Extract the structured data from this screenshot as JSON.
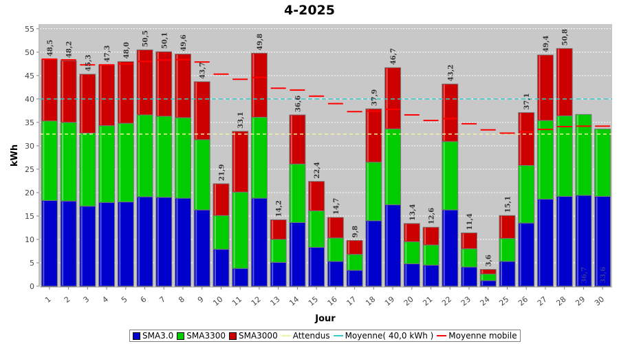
{
  "chart_data": {
    "type": "bar",
    "title": "4-2025",
    "xlabel": "Jour",
    "ylabel": "kWh",
    "ylim": [
      0,
      56
    ],
    "yticks": [
      0,
      5,
      10,
      15,
      20,
      25,
      30,
      35,
      40,
      45,
      50,
      55
    ],
    "grid": true,
    "stacked": true,
    "legend_position": "bottom",
    "categories": [
      "1",
      "2",
      "3",
      "4",
      "5",
      "6",
      "7",
      "8",
      "9",
      "10",
      "11",
      "12",
      "13",
      "14",
      "15",
      "16",
      "17",
      "18",
      "19",
      "20",
      "21",
      "22",
      "23",
      "24",
      "25",
      "26",
      "27",
      "28",
      "29",
      "30"
    ],
    "series": [
      {
        "name": "SMA3.0",
        "color": "#0000cc",
        "values": [
          18.3,
          18.2,
          17.1,
          17.9,
          18.0,
          19.1,
          19.0,
          18.8,
          16.3,
          7.9,
          3.8,
          18.8,
          5.1,
          13.6,
          8.3,
          5.3,
          3.4,
          14.0,
          17.4,
          4.8,
          4.5,
          16.3,
          4.1,
          1.2,
          5.3,
          13.5,
          18.6,
          19.2,
          19.4,
          19.2
        ]
      },
      {
        "name": "SMA3300",
        "color": "#00cc00",
        "values": [
          17.0,
          16.8,
          15.6,
          16.4,
          16.8,
          17.5,
          17.3,
          17.2,
          15.0,
          7.2,
          16.3,
          17.3,
          4.9,
          12.5,
          7.8,
          5.0,
          3.4,
          12.5,
          16.2,
          4.7,
          4.3,
          14.6,
          3.9,
          1.4,
          4.9,
          12.3,
          16.8,
          17.2,
          17.3,
          14.4
        ]
      },
      {
        "name": "SMA3000",
        "color": "#cc0000",
        "values": [
          13.2,
          13.2,
          12.6,
          13.0,
          13.2,
          13.9,
          13.8,
          13.6,
          12.4,
          6.8,
          13.0,
          13.7,
          4.2,
          10.5,
          6.3,
          4.4,
          3.0,
          11.4,
          13.1,
          3.9,
          3.8,
          12.3,
          3.4,
          1.0,
          4.9,
          11.3,
          14.0,
          14.4,
          0,
          0
        ]
      }
    ],
    "totals": [
      "48,5",
      "48,2",
      "45,3",
      "47,3",
      "48,0",
      "50,5",
      "50,1",
      "49,6",
      "43,7",
      "21,9",
      "33,1",
      "49,8",
      "14,2",
      "36,6",
      "22,4",
      "14,7",
      "9,8",
      "37,9",
      "46,7",
      "13,4",
      "12,6",
      "43,2",
      "11,4",
      "3,6",
      "15,1",
      "37,1",
      "49,4",
      "50,8",
      "36,7",
      "33,6"
    ],
    "moyenne_mobile": [
      48.5,
      48.35,
      47.3,
      47.3,
      47.5,
      48.0,
      48.3,
      48.4,
      47.9,
      45.3,
      44.2,
      44.6,
      42.3,
      41.9,
      40.6,
      39.0,
      37.3,
      37.4,
      37.8,
      36.6,
      35.4,
      35.8,
      34.7,
      33.4,
      32.7,
      33.0,
      33.5,
      34.1,
      34.2,
      34.2
    ],
    "attendus": 32.5,
    "moyenne": 40.0,
    "legend": [
      {
        "label": "SMA3.0",
        "kind": "box",
        "color": "#0000cc"
      },
      {
        "label": "SMA3300",
        "kind": "box",
        "color": "#00cc00"
      },
      {
        "label": "SMA3000",
        "kind": "box",
        "color": "#cc0000"
      },
      {
        "label": "Attendus",
        "kind": "line",
        "color": "#f2f2a0"
      },
      {
        "label": "Moyenne( 40,0 kWh )",
        "kind": "line",
        "color": "#33cccc"
      },
      {
        "label": "Moyenne mobile",
        "kind": "line",
        "color": "#ff0000"
      }
    ],
    "colors": {
      "plot_bg": "#c8c8c8",
      "grid": "#ffffff"
    }
  }
}
